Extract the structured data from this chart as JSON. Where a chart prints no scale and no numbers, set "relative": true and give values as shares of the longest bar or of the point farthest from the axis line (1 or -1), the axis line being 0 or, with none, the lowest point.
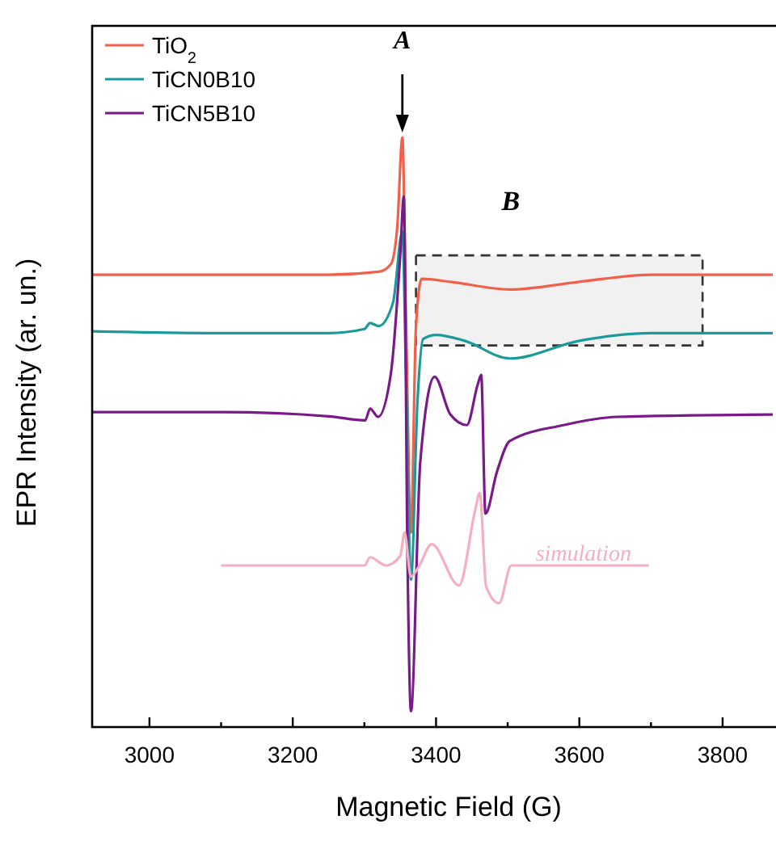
{
  "chart_data": {
    "type": "line",
    "xlabel": "Magnetic Field  (G)",
    "ylabel": "EPR Intensity  (ar. un.)",
    "relative": true,
    "xlim": [
      2920,
      3870
    ],
    "xticks": [
      3000,
      {
        "value": 3100,
        "label": null
      },
      3200,
      {
        "value": 3300,
        "label": null
      },
      3400,
      {
        "value": 3500,
        "label": null
      },
      3600,
      {
        "value": 3700,
        "label": null
      },
      3800
    ],
    "tick_labels": "x",
    "legend": "top left",
    "marker": "none",
    "line_style": "solid",
    "series": [
      {
        "name": "TiO$_{2}$",
        "color": "#f0604a",
        "x": [
          2920,
          3100,
          3250,
          3320,
          3337,
          3346,
          3353,
          3358,
          3365,
          3372,
          3380,
          3420,
          3503,
          3600,
          3700,
          3870
        ],
        "values": [
          0.767,
          0.767,
          0.767,
          0.772,
          0.785,
          0.85,
          1.0,
          0.7,
          0.33,
          0.68,
          0.76,
          0.755,
          0.742,
          0.755,
          0.767,
          0.767
        ]
      },
      {
        "name": "TiCN0B10",
        "color": "#1a9a9a",
        "x": [
          2920,
          3100,
          3250,
          3300,
          3308,
          3320,
          3340,
          3353,
          3358,
          3365,
          3374,
          3382,
          3400,
          3440,
          3503,
          3600,
          3700,
          3870
        ],
        "values": [
          0.671,
          0.668,
          0.668,
          0.675,
          0.685,
          0.68,
          0.72,
          0.84,
          0.6,
          0.25,
          0.55,
          0.658,
          0.665,
          0.655,
          0.625,
          0.655,
          0.668,
          0.668
        ]
      },
      {
        "name": "TiCN5B10",
        "color": "#7a1a8a",
        "x": [
          2920,
          3100,
          3250,
          3301,
          3308,
          3319,
          3337,
          3350,
          3355,
          3360,
          3365,
          3378,
          3398,
          3420,
          3443,
          3458,
          3463,
          3469,
          3485,
          3503,
          3578,
          3653,
          3870
        ],
        "values": [
          0.534,
          0.534,
          0.527,
          0.52,
          0.54,
          0.526,
          0.6,
          0.8,
          0.9,
          0.3,
          0.027,
          0.45,
          0.594,
          0.53,
          0.512,
          0.58,
          0.597,
          0.362,
          0.433,
          0.485,
          0.512,
          0.526,
          0.53
        ]
      },
      {
        "name": "simulation",
        "color": "#f4b0c0",
        "x": [
          3100,
          3300,
          3308,
          3330,
          3350,
          3356,
          3365,
          3375,
          3394,
          3432,
          3455,
          3461,
          3470,
          3488,
          3505,
          3697
        ],
        "values": [
          0.274,
          0.274,
          0.288,
          0.274,
          0.29,
          0.33,
          0.255,
          0.27,
          0.31,
          0.24,
          0.37,
          0.397,
          0.238,
          0.21,
          0.274,
          0.274
        ]
      }
    ],
    "annotations": [
      "A"
    ],
    "bands": [
      {
        "axis": "x",
        "from": 3372,
        "to": 3772,
        "label": "B",
        "color": "#333333"
      }
    ]
  }
}
